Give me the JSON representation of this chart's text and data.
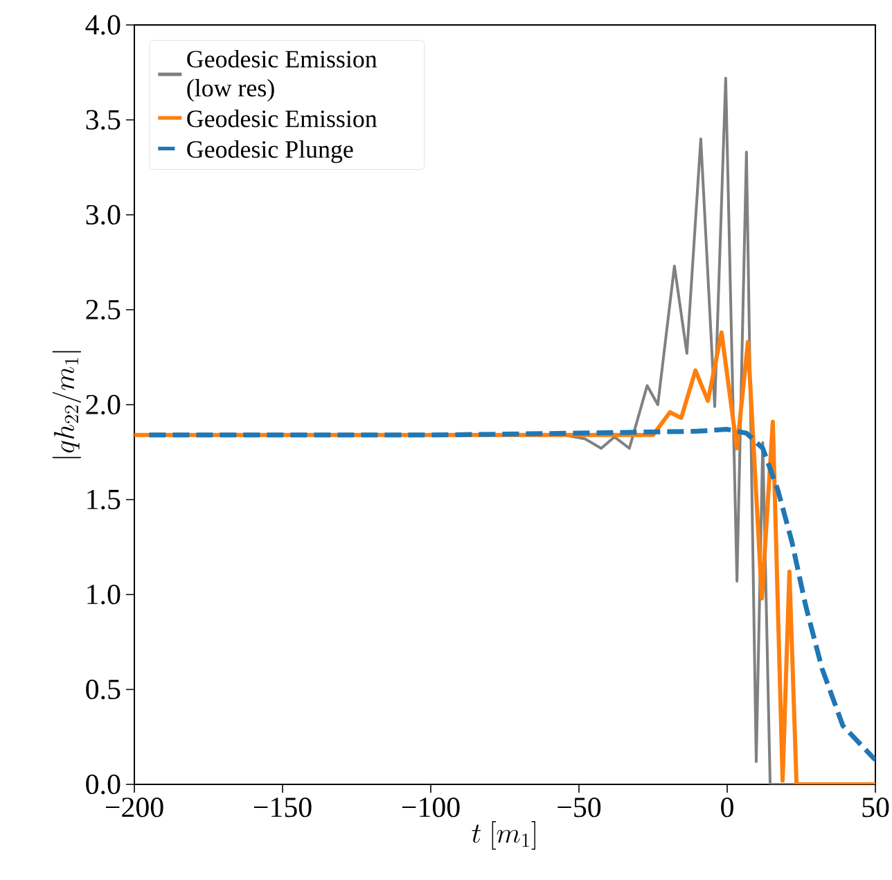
{
  "chart_data": {
    "type": "line",
    "xlabel": "t\\ [m_1]",
    "ylabel": "|qh_{22}/m_1|",
    "xlim": [
      -200,
      50
    ],
    "ylim": [
      0,
      4
    ],
    "xticks": [
      {
        "value": -200,
        "label": "−200"
      },
      {
        "value": -150,
        "label": "−150"
      },
      {
        "value": -100,
        "label": "−100"
      },
      {
        "value": -50,
        "label": "−50"
      },
      0,
      50
    ],
    "yticks": [
      {
        "value": 0,
        "label": "0.0"
      },
      {
        "value": 0.5,
        "label": "0.5"
      },
      {
        "value": 1,
        "label": "1.0"
      },
      {
        "value": 1.5,
        "label": "1.5"
      },
      {
        "value": 2,
        "label": "2.0"
      },
      {
        "value": 2.5,
        "label": "2.5"
      },
      {
        "value": 3,
        "label": "3.0"
      },
      {
        "value": 3.5,
        "label": "3.5"
      },
      {
        "value": 4,
        "label": "4.0"
      }
    ],
    "legend": "top left",
    "series": [
      {
        "name": "Geodesic Emission (low res)",
        "color": "#808080",
        "line_style": "solid",
        "x": [
          -200,
          -100,
          -55,
          -48,
          -42.5,
          -38,
          -33,
          -27,
          -23.4,
          -17.8,
          -13.6,
          -8.9,
          -4.2,
          -0.5,
          3.3,
          6.5,
          9.8,
          12,
          14.5,
          50
        ],
        "values": [
          1.84,
          1.84,
          1.84,
          1.82,
          1.77,
          1.83,
          1.77,
          2.1,
          2.0,
          2.73,
          2.27,
          3.4,
          1.99,
          3.72,
          1.07,
          3.33,
          0.12,
          1.8,
          0,
          0
        ]
      },
      {
        "name": "Geodesic Emission",
        "color": "#ff7f0e",
        "line_style": "solid",
        "x": [
          -200,
          -100,
          -25,
          -19.3,
          -15.5,
          -10.7,
          -6.5,
          -1.9,
          3.3,
          7,
          11.7,
          15.4,
          18.7,
          21,
          23.4,
          50
        ],
        "values": [
          1.84,
          1.84,
          1.84,
          1.96,
          1.93,
          2.18,
          2.02,
          2.38,
          1.77,
          2.33,
          0.98,
          1.91,
          0.02,
          1.12,
          0,
          0
        ]
      },
      {
        "name": "Geodesic Plunge",
        "color": "#1f77b4",
        "line_style": "dashed",
        "x": [
          -195,
          -100,
          -50,
          -10,
          0,
          6.5,
          12,
          17.1,
          21.8,
          26.5,
          32,
          39,
          49.3,
          50
        ],
        "values": [
          1.84,
          1.84,
          1.85,
          1.86,
          1.87,
          1.85,
          1.77,
          1.55,
          1.28,
          0.94,
          0.61,
          0.31,
          0.14,
          0.13
        ]
      }
    ]
  }
}
